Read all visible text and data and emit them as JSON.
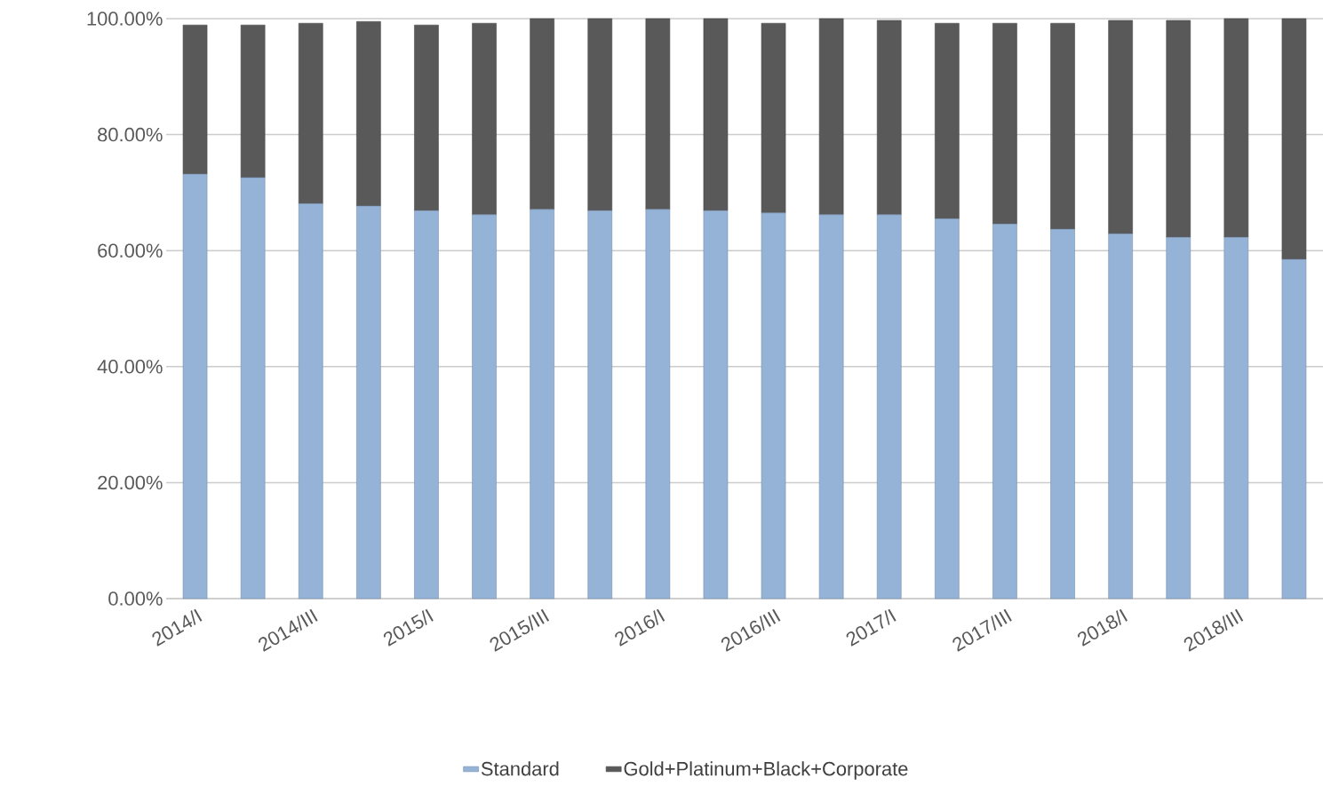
{
  "chart_data": {
    "type": "bar",
    "stacked": true,
    "categories": [
      "2014/I",
      null,
      "2014/III",
      null,
      "2015/I",
      null,
      "2015/III",
      null,
      "2016/I",
      null,
      "2016/III",
      null,
      "2017/I",
      null,
      "2017/III",
      null,
      "2018/I",
      null,
      "2018/III",
      null
    ],
    "series": [
      {
        "name": "Standard",
        "color": "#95b3d7",
        "values": [
          73.2,
          72.6,
          68.1,
          67.7,
          66.9,
          66.2,
          67.1,
          66.9,
          67.1,
          66.9,
          66.5,
          66.2,
          66.2,
          65.5,
          64.6,
          63.7,
          62.9,
          62.3,
          62.3,
          58.5
        ]
      },
      {
        "name": "Gold+Platinum+Black+Corporate",
        "color": "#595959",
        "values": [
          25.7,
          26.3,
          31.1,
          31.8,
          32.0,
          33.0,
          32.9,
          33.1,
          32.9,
          33.1,
          32.7,
          33.8,
          33.5,
          33.7,
          34.6,
          35.5,
          36.8,
          37.4,
          37.7,
          41.5
        ]
      }
    ],
    "ylim": [
      0,
      100
    ],
    "yticks": [
      {
        "value": 0,
        "label": "0.00%"
      },
      {
        "value": 20,
        "label": "20.00%"
      },
      {
        "value": 40,
        "label": "40.00%"
      },
      {
        "value": 60,
        "label": "60.00%"
      },
      {
        "value": 80,
        "label": "80.00%"
      },
      {
        "value": 100,
        "label": "100.00%"
      }
    ],
    "grid": "y",
    "legend": "bottom"
  }
}
